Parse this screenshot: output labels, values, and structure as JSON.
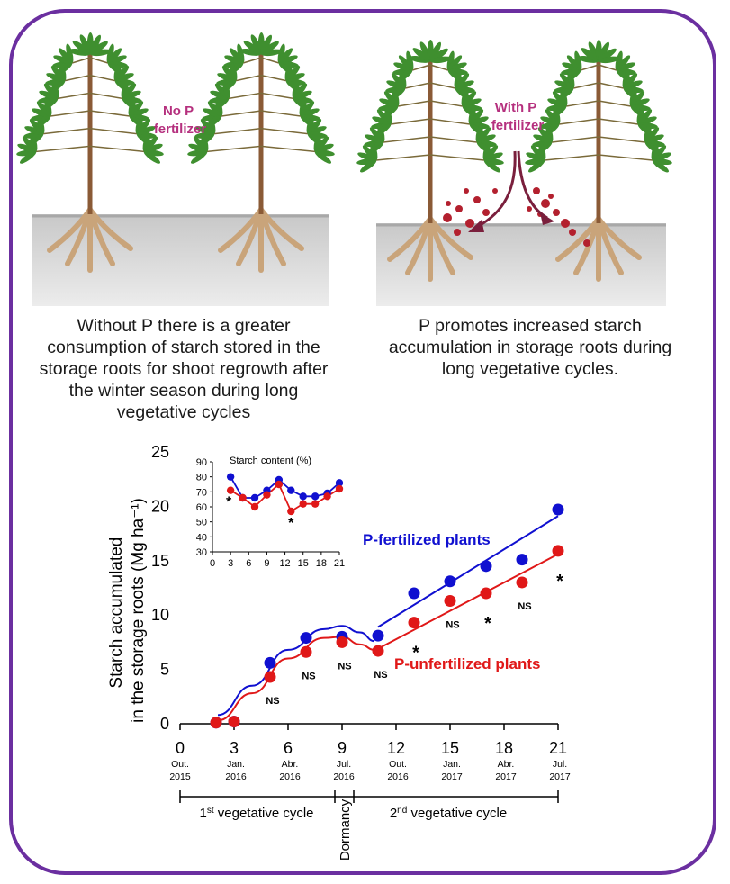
{
  "illustration": {
    "left_label": [
      "No P",
      "fertilizer"
    ],
    "right_label": [
      "With P",
      "fertilizer"
    ],
    "colors": {
      "label": "#b5307e",
      "granule": "#b3202e",
      "soil": "#d6d6d6",
      "leaf": "#3f8f2f",
      "root": "#c9a47a"
    }
  },
  "captions": {
    "left": "Without P there is a greater consumption of starch stored in the storage roots for shoot regrowth after the winter season during long vegetative cycles",
    "right": "P promotes increased starch accumulation in storage roots during long vegetative cycles."
  },
  "chart_data": [
    {
      "type": "scatter",
      "ylabel": [
        "Starch accumulated",
        "in the storage roots (Mg ha⁻¹)"
      ],
      "ylim": [
        0,
        25
      ],
      "yticks": [
        0,
        5,
        10,
        15,
        20,
        25
      ],
      "xlim": [
        0,
        21
      ],
      "xticks": [
        0,
        3,
        6,
        9,
        12,
        15,
        18,
        21
      ],
      "xdates": [
        {
          "x": 0,
          "month": "Out.",
          "year": "2015"
        },
        {
          "x": 3,
          "month": "Jan.",
          "year": "2016"
        },
        {
          "x": 6,
          "month": "Abr.",
          "year": "2016"
        },
        {
          "x": 9,
          "month": "Jul.",
          "year": "2016"
        },
        {
          "x": 12,
          "month": "Out.",
          "year": "2016"
        },
        {
          "x": 15,
          "month": "Jan.",
          "year": "2017"
        },
        {
          "x": 18,
          "month": "Abr.",
          "year": "2017"
        },
        {
          "x": 21,
          "month": "Jul.",
          "year": "2017"
        }
      ],
      "series": [
        {
          "name": "P-fertilized plants",
          "color": "#1010d0",
          "x": [
            2,
            3,
            5,
            7,
            9,
            11,
            13,
            15,
            17,
            19,
            21
          ],
          "y": [
            0.1,
            0.2,
            5.6,
            7.9,
            8.0,
            8.1,
            12.0,
            13.1,
            14.5,
            15.1,
            19.7
          ]
        },
        {
          "name": "P-unfertilized plants",
          "color": "#e01818",
          "x": [
            2,
            3,
            5,
            7,
            9,
            11,
            13,
            15,
            17,
            19,
            21
          ],
          "y": [
            0.1,
            0.2,
            4.3,
            6.6,
            7.5,
            6.7,
            9.3,
            11.3,
            12.0,
            13.0,
            15.9
          ]
        }
      ],
      "significance": [
        {
          "x": 5,
          "label": "NS"
        },
        {
          "x": 7,
          "label": "NS"
        },
        {
          "x": 9,
          "label": "NS"
        },
        {
          "x": 11,
          "label": "NS"
        },
        {
          "x": 13,
          "label": "*"
        },
        {
          "x": 15,
          "label": "NS"
        },
        {
          "x": 17,
          "label": "*"
        },
        {
          "x": 19,
          "label": "NS"
        },
        {
          "x": 21,
          "label": "*"
        }
      ],
      "periods": {
        "first": [
          "1",
          "st",
          " vegetative cycle"
        ],
        "dormancy": "Dormancy",
        "second": [
          "2",
          "nd",
          " vegetative cycle"
        ]
      }
    },
    {
      "type": "line",
      "title": "Starch content (%)",
      "ylim": [
        30,
        90
      ],
      "yticks": [
        30,
        40,
        50,
        60,
        70,
        80,
        90
      ],
      "xlim": [
        0,
        21
      ],
      "xticks": [
        0,
        3,
        6,
        9,
        12,
        15,
        18,
        21
      ],
      "series": [
        {
          "name": "P-fertilized plants",
          "color": "#1010d0",
          "x": [
            3,
            5,
            7,
            9,
            11,
            13,
            15,
            17,
            19,
            21
          ],
          "y": [
            80,
            66,
            66,
            71,
            78,
            71,
            67,
            67,
            69,
            76
          ]
        },
        {
          "name": "P-unfertilized plants",
          "color": "#e01818",
          "x": [
            3,
            5,
            7,
            9,
            11,
            13,
            15,
            17,
            19,
            21
          ],
          "y": [
            71,
            66,
            60,
            68,
            75,
            57,
            62,
            62,
            67,
            72
          ]
        }
      ],
      "significance": [
        {
          "x": 3,
          "label": "*"
        },
        {
          "x": 13,
          "label": "*"
        }
      ]
    }
  ]
}
